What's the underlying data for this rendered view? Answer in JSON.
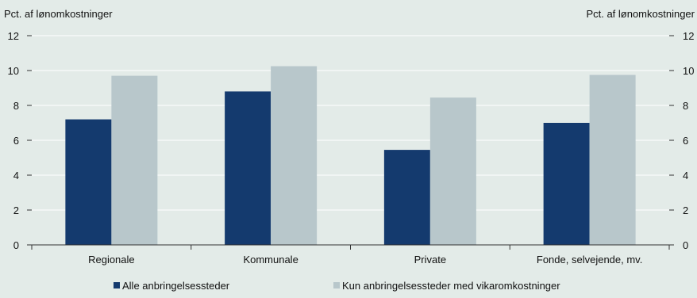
{
  "chart_data": {
    "type": "bar",
    "categories": [
      "Regionale",
      "Kommunale",
      "Private",
      "Fonde, selvejende, mv."
    ],
    "series": [
      {
        "name": "Alle anbringelsessteder",
        "values": [
          7.2,
          8.8,
          5.45,
          7.0
        ],
        "color": "#143a6e"
      },
      {
        "name": "Kun anbringelsessteder med vikaromkostninger",
        "values": [
          9.7,
          10.25,
          8.45,
          9.75
        ],
        "color": "#b8c7cb"
      }
    ],
    "ylabel_left": "Pct. af lønomkostninger",
    "ylabel_right": "Pct. af lønomkostninger",
    "ylim": [
      0,
      12
    ],
    "yticks": [
      0,
      2,
      4,
      6,
      8,
      10,
      12
    ],
    "grid": true,
    "legend_position": "bottom",
    "colors": {
      "background": "#e3ebe8",
      "grid": "#ffffff",
      "axis": "#333333"
    }
  }
}
